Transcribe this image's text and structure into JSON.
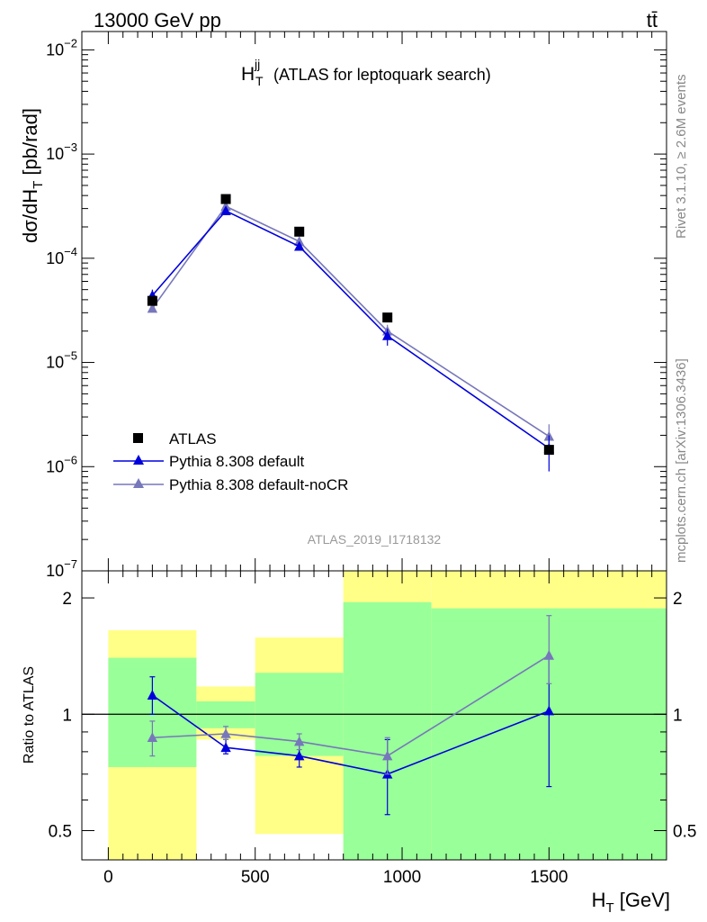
{
  "header": {
    "left": "13000 GeV pp",
    "right": "tt̄"
  },
  "side_text": {
    "upper": "Rivet 3.1.10, ≥ 2.6M events",
    "lower": "mcplots.cern.ch [arXiv:1306.3436]"
  },
  "watermark": "ATLAS_2019_I1718132",
  "colors": {
    "atlas": "#000000",
    "default": "#0000dd",
    "noCR": "#7777bb",
    "band_inner": "#99ff99",
    "band_outer": "#ffff88"
  },
  "chart_data": [
    {
      "type": "scatter",
      "title": "H_T^jj (ATLAS for leptoquark search)",
      "title_main": "H",
      "title_sup": "jj",
      "title_sub": "T",
      "title_rest": "(ATLAS for leptoquark search)",
      "ylabel": "dσ/dH_T [pb/rad]",
      "ylabel_parts": [
        "dσ/dH",
        "T",
        " [pb/rad]"
      ],
      "yscale": "log",
      "ylim": [
        1e-07,
        0.015
      ],
      "xlim": [
        -90,
        1900
      ],
      "yticks": [
        {
          "value": 1e-07,
          "base": "10",
          "exp": "−7"
        },
        {
          "value": 1e-06,
          "base": "10",
          "exp": "−6"
        },
        {
          "value": 1e-05,
          "base": "10",
          "exp": "−5"
        },
        {
          "value": 0.0001,
          "base": "10",
          "exp": "−4"
        },
        {
          "value": 0.001,
          "base": "10",
          "exp": "−3"
        },
        {
          "value": 0.01,
          "base": "10",
          "exp": "−2"
        }
      ],
      "legend_position": "bottom-left",
      "series": [
        {
          "name": "ATLAS",
          "marker": "square",
          "x": [
            150,
            400,
            650,
            950,
            1500
          ],
          "y": [
            3.9e-05,
            0.00037,
            0.00018,
            2.7e-05,
            1.45e-06
          ]
        },
        {
          "name": "Pythia 8.308 default",
          "marker": "triangle",
          "x": [
            150,
            400,
            650,
            950,
            1500
          ],
          "y": [
            4.4e-05,
            0.000285,
            0.00013,
            1.8e-05,
            1.5e-06
          ],
          "err_low": [
            3.9e-05,
            0.00027,
            0.000122,
            1.45e-05,
            9e-07
          ],
          "err_high": [
            5e-05,
            0.0003,
            0.000138,
            2.1e-05,
            2e-06
          ]
        },
        {
          "name": "Pythia 8.308 default-noCR",
          "marker": "triangle",
          "x": [
            150,
            400,
            650,
            950,
            1500
          ],
          "y": [
            3.3e-05,
            0.000315,
            0.000145,
            2e-05,
            1.95e-06
          ],
          "err_low": [
            3.05e-05,
            0.0003,
            0.000138,
            1.75e-05,
            1.4e-06
          ],
          "err_high": [
            3.6e-05,
            0.00033,
            0.000152,
            2.3e-05,
            2.55e-06
          ]
        }
      ]
    },
    {
      "type": "scatter",
      "title": "",
      "ylabel": "Ratio to ATLAS",
      "xlabel": "H_T [GeV]",
      "xlabel_parts": [
        "H",
        "T",
        " [GeV]"
      ],
      "yscale": "log",
      "ylim": [
        0.42,
        2.35
      ],
      "xlim": [
        -90,
        1900
      ],
      "xticks": [
        0,
        500,
        1000,
        1500
      ],
      "yticks": [
        0.5,
        1,
        2
      ],
      "reference_line": 1,
      "bands": [
        {
          "x0": 0,
          "x1": 300,
          "inner": [
            0.73,
            1.4
          ],
          "outer": [
            0.35,
            1.65
          ]
        },
        {
          "x0": 300,
          "x1": 500,
          "inner": [
            0.92,
            1.08
          ],
          "outer": [
            0.86,
            1.18
          ]
        },
        {
          "x0": 500,
          "x1": 800,
          "inner": [
            0.78,
            1.28
          ],
          "outer": [
            0.49,
            1.58
          ]
        },
        {
          "x0": 800,
          "x1": 1100,
          "inner": [
            0.3,
            1.95
          ],
          "outer": [
            0.3,
            2.4
          ]
        },
        {
          "x0": 1100,
          "x1": 1900,
          "inner": [
            0.3,
            1.88
          ],
          "outer": [
            0.3,
            2.4
          ]
        }
      ],
      "series": [
        {
          "name": "Pythia 8.308 default",
          "x": [
            150,
            400,
            650,
            950,
            1500
          ],
          "y": [
            1.12,
            0.82,
            0.78,
            0.7,
            1.02
          ],
          "err_low": [
            1.0,
            0.79,
            0.73,
            0.55,
            0.65
          ],
          "err_high": [
            1.25,
            0.86,
            0.84,
            0.86,
            1.4
          ]
        },
        {
          "name": "Pythia 8.308 default-noCR",
          "x": [
            150,
            400,
            650,
            950,
            1500
          ],
          "y": [
            0.87,
            0.89,
            0.85,
            0.78,
            1.42
          ],
          "err_low": [
            0.78,
            0.86,
            0.81,
            0.7,
            1.2
          ],
          "err_high": [
            0.96,
            0.93,
            0.89,
            0.87,
            1.8
          ]
        }
      ]
    }
  ]
}
